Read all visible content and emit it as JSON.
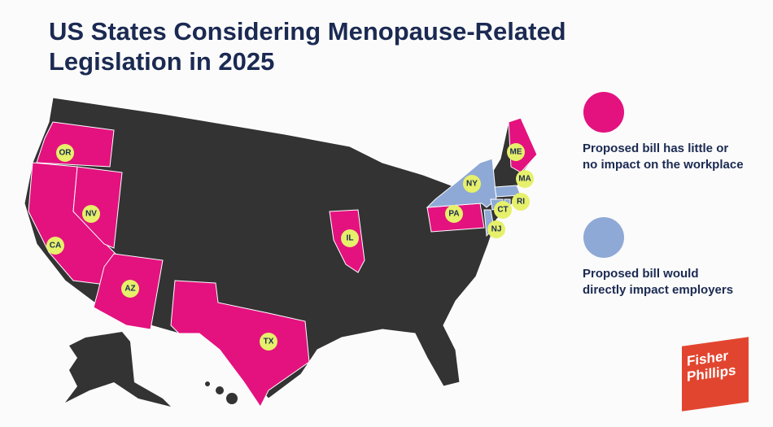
{
  "title": "US States Considering Menopause-Related Legislation in 2025",
  "legend": [
    {
      "label": "Proposed bill has little or no impact on the workplace",
      "color": "#e3127f",
      "states": [
        "OR",
        "CA",
        "NV",
        "AZ",
        "TX",
        "IL",
        "PA",
        "ME"
      ]
    },
    {
      "label": "Proposed bill would directly impact employers",
      "color": "#8fa9d6",
      "states": [
        "NY",
        "MA",
        "CT",
        "RI",
        "NJ"
      ]
    }
  ],
  "logo": [
    "Fisher",
    "Phillips"
  ]
}
